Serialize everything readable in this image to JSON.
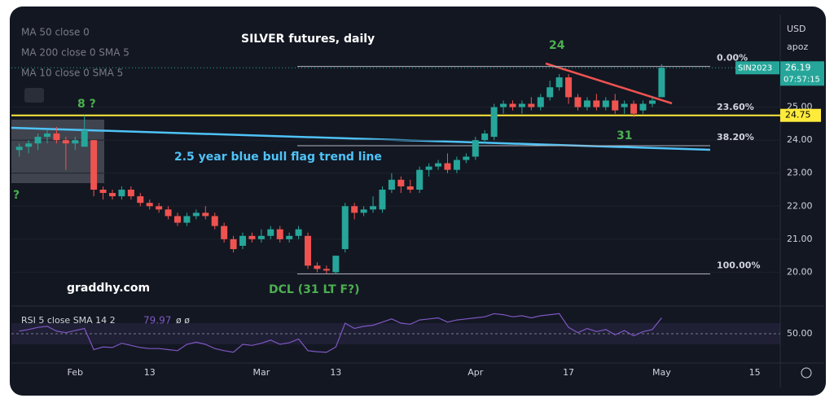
{
  "chart_data": {
    "type": "candlestick",
    "title": "SILVER futures, daily",
    "categories": [
      null,
      null,
      null,
      null,
      null,
      null,
      "Feb",
      null,
      null,
      null,
      null,
      null,
      null,
      null,
      "13",
      null,
      null,
      null,
      null,
      null,
      null,
      null,
      null,
      null,
      null,
      null,
      "Mar",
      null,
      null,
      null,
      null,
      null,
      null,
      null,
      "13",
      null,
      null,
      null,
      null,
      null,
      null,
      null,
      null,
      null,
      null,
      null,
      null,
      null,
      null,
      "Apr",
      null,
      null,
      null,
      null,
      null,
      null,
      null,
      null,
      null,
      "17",
      null,
      null,
      null,
      null,
      null,
      null,
      null,
      null,
      null,
      "May",
      null,
      null,
      null,
      null,
      null,
      null,
      null,
      null,
      null,
      "15"
    ],
    "open": [
      23.7,
      23.8,
      23.9,
      24.1,
      24.2,
      24.0,
      23.9,
      23.8,
      24.0,
      22.5,
      22.4,
      22.3,
      22.5,
      22.3,
      22.1,
      22.0,
      21.9,
      21.7,
      21.5,
      21.7,
      21.8,
      21.7,
      21.4,
      21.0,
      20.8,
      21.1,
      21.0,
      21.1,
      21.3,
      21.0,
      21.1,
      21.1,
      20.2,
      20.1,
      20.0,
      20.7,
      22.0,
      21.8,
      21.9,
      21.9,
      22.5,
      22.8,
      22.6,
      22.5,
      23.1,
      23.2,
      23.3,
      23.1,
      23.4,
      23.5,
      24.0,
      24.1,
      25.0,
      25.1,
      25.0,
      25.1,
      25.0,
      25.3,
      25.6,
      25.9,
      25.3,
      25.0,
      25.2,
      25.0,
      25.2,
      25.0,
      25.1,
      24.9,
      25.1,
      25.3,
      null,
      null,
      null,
      null,
      null,
      null,
      null,
      null,
      null,
      null
    ],
    "high": [
      23.9,
      24.0,
      24.2,
      24.3,
      24.4,
      24.1,
      24.1,
      24.75,
      24.0,
      22.6,
      22.5,
      22.6,
      22.6,
      22.4,
      22.2,
      22.1,
      22.0,
      21.8,
      21.8,
      21.9,
      22.0,
      21.8,
      21.5,
      21.1,
      21.2,
      21.2,
      21.3,
      21.4,
      21.4,
      21.2,
      21.4,
      21.2,
      20.3,
      20.2,
      20.5,
      22.1,
      22.1,
      22.0,
      22.3,
      22.6,
      23.0,
      22.9,
      22.8,
      23.2,
      23.3,
      23.4,
      23.6,
      23.5,
      23.6,
      24.1,
      24.3,
      25.1,
      25.2,
      25.2,
      25.2,
      25.3,
      25.4,
      25.8,
      26.0,
      26.0,
      25.4,
      25.3,
      25.4,
      25.3,
      25.4,
      25.2,
      25.2,
      25.2,
      25.3,
      26.3,
      null,
      null,
      null,
      null,
      null,
      null,
      null,
      null,
      null,
      null
    ],
    "low": [
      23.5,
      23.6,
      23.7,
      23.9,
      23.9,
      23.1,
      23.7,
      23.8,
      22.3,
      22.2,
      22.2,
      22.2,
      22.2,
      22.0,
      21.9,
      21.8,
      21.6,
      21.4,
      21.4,
      21.6,
      21.6,
      21.3,
      20.9,
      20.6,
      20.7,
      20.9,
      20.9,
      21.0,
      20.9,
      20.9,
      21.0,
      20.1,
      20.0,
      19.95,
      19.95,
      20.6,
      21.6,
      21.7,
      21.8,
      21.8,
      22.4,
      22.4,
      22.4,
      22.4,
      22.9,
      23.1,
      23.0,
      23.0,
      23.3,
      23.4,
      23.9,
      24.0,
      24.8,
      24.9,
      24.8,
      24.9,
      24.9,
      25.2,
      25.5,
      25.1,
      24.9,
      24.9,
      24.9,
      24.9,
      24.8,
      24.8,
      24.7,
      24.8,
      25.0,
      25.3,
      null,
      null,
      null,
      null,
      null,
      null,
      null,
      null,
      null,
      null
    ],
    "close": [
      23.8,
      23.9,
      24.1,
      24.2,
      24.0,
      23.9,
      24.0,
      24.3,
      22.5,
      22.4,
      22.3,
      22.5,
      22.3,
      22.1,
      22.0,
      21.9,
      21.7,
      21.5,
      21.7,
      21.8,
      21.7,
      21.4,
      21.0,
      20.7,
      21.1,
      21.0,
      21.1,
      21.3,
      21.0,
      21.1,
      21.3,
      20.2,
      20.1,
      20.05,
      20.5,
      22.0,
      21.8,
      21.9,
      22.0,
      22.5,
      22.8,
      22.6,
      22.5,
      23.1,
      23.2,
      23.3,
      23.1,
      23.4,
      23.5,
      24.0,
      24.2,
      25.0,
      25.1,
      25.0,
      25.1,
      25.0,
      25.3,
      25.6,
      25.9,
      25.3,
      25.0,
      25.2,
      25.0,
      25.2,
      24.9,
      25.1,
      24.8,
      25.1,
      25.2,
      26.19,
      null,
      null,
      null,
      null,
      null,
      null,
      null,
      null,
      null,
      null
    ],
    "up_color": "#26a69a",
    "down_color": "#ef5350",
    "ylim": [
      19.0,
      27.75
    ],
    "yticks": [
      {
        "value": 20,
        "label": "20.00"
      },
      {
        "value": 21,
        "label": "21.00"
      },
      {
        "value": 22,
        "label": "22.00"
      },
      {
        "value": 23,
        "label": "23.00"
      },
      {
        "value": 24,
        "label": "24.00"
      },
      {
        "value": 25,
        "label": "25.00"
      }
    ],
    "hline": {
      "value": 24.75,
      "color": "#ffeb3b"
    },
    "fib": {
      "high": 26.23,
      "low": 19.95,
      "levels": [
        {
          "value": 0,
          "label": "0.00%"
        },
        {
          "value": 23.6,
          "label": "23.60%"
        },
        {
          "value": 38.2,
          "label": "38.20%"
        },
        {
          "value": 100,
          "label": "100.00%"
        }
      ]
    },
    "annotations": [
      "24",
      "8 ?",
      "?",
      "31",
      "2.5 year blue bull flag trend line",
      "graddhy.com",
      "DCL (31 LT F?)"
    ],
    "symbol": "SIN2023",
    "countdown": "07:57:15",
    "rsi": {
      "name": "RSI 5 close SMA 14 2",
      "extra": "ø ø",
      "color": "#7e57c2",
      "ylim": [
        -5,
        100
      ],
      "band": [
        30,
        70
      ],
      "yticks": [
        {
          "value": 50,
          "label": "50.00"
        }
      ],
      "values": [
        55,
        58,
        62,
        64,
        55,
        52,
        56,
        60,
        20,
        25,
        24,
        32,
        28,
        24,
        22,
        22,
        20,
        18,
        30,
        34,
        30,
        22,
        18,
        15,
        30,
        28,
        32,
        38,
        30,
        33,
        40,
        18,
        16,
        15,
        25,
        70,
        60,
        64,
        66,
        72,
        78,
        70,
        68,
        76,
        78,
        80,
        72,
        76,
        78,
        80,
        82,
        88,
        86,
        82,
        84,
        80,
        84,
        86,
        88,
        62,
        52,
        60,
        54,
        58,
        48,
        56,
        46,
        54,
        58,
        79.97,
        null,
        null,
        null,
        null,
        null,
        null,
        null,
        null,
        null,
        null
      ]
    }
  },
  "ui": {
    "currency": "USD",
    "scale": "apoz",
    "indicators": [
      "MA 50 close 0",
      "MA 200 close 0 SMA 5",
      "MA 10 close 0 SMA 5"
    ]
  }
}
